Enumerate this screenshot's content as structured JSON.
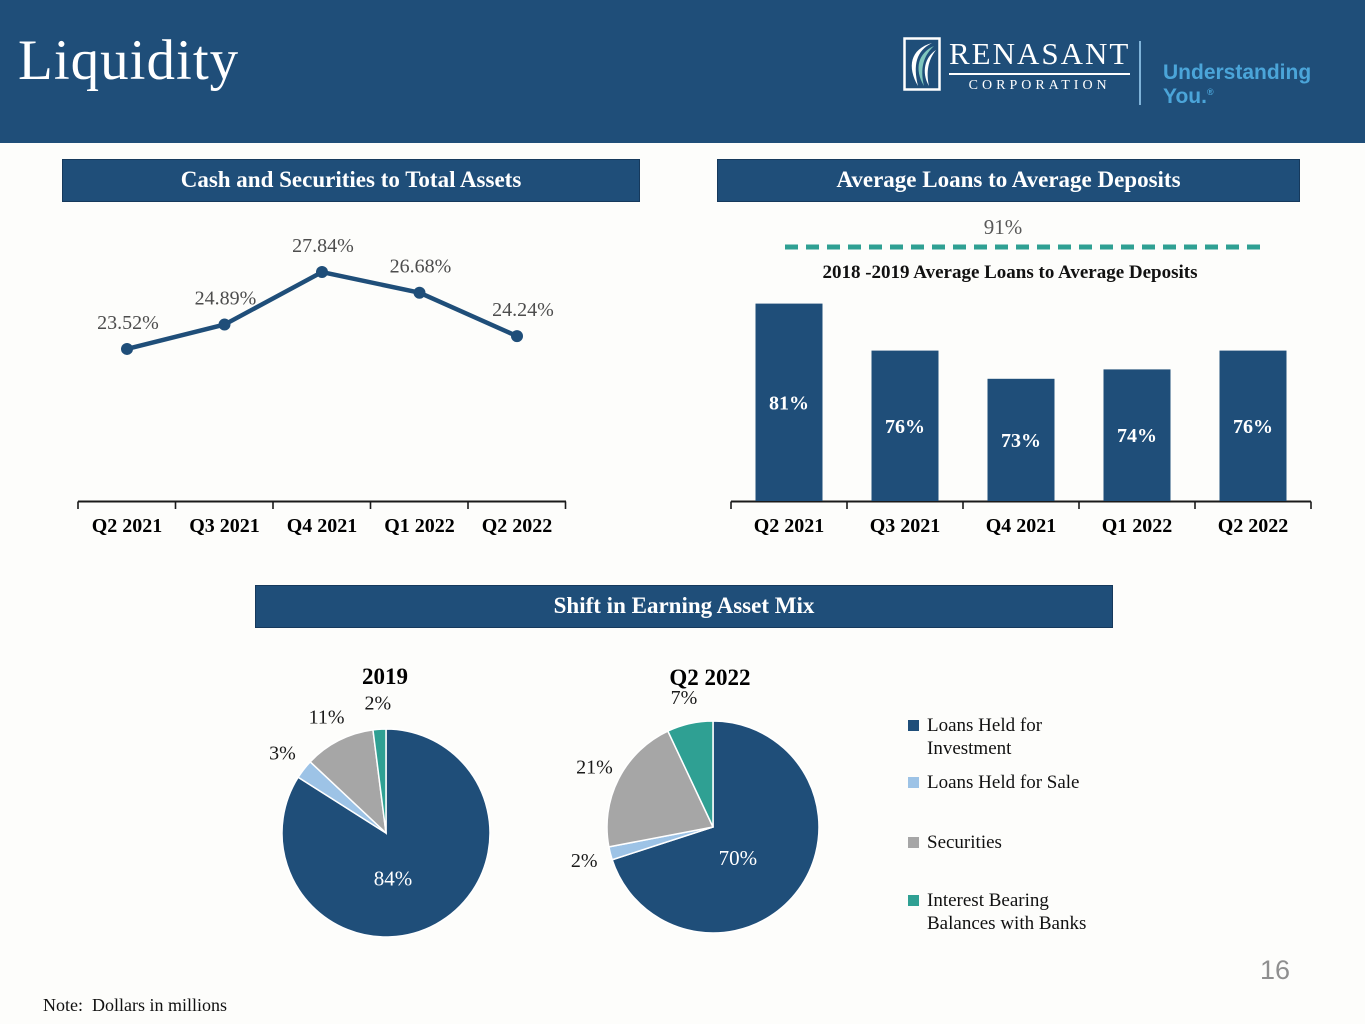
{
  "header": {
    "title": "Liquidity",
    "logo_name": "RENASANT",
    "logo_sub": "CORPORATION",
    "tagline": "Understanding You.",
    "tagline_mark": "®"
  },
  "pie_section": {
    "title": "Shift in Earning Asset Mix",
    "legend": [
      "Loans Held for Investment",
      "Loans Held for Sale",
      "Securities",
      "Interest Bearing Balances with Banks"
    ]
  },
  "chart_data": [
    {
      "id": "cash-securities-to-total-assets",
      "type": "line",
      "title": "Cash and Securities to Total Assets",
      "categories": [
        "Q2 2021",
        "Q3 2021",
        "Q4 2021",
        "Q1 2022",
        "Q2 2022"
      ],
      "values": [
        23.52,
        24.89,
        27.84,
        26.68,
        24.24
      ],
      "data_labels": [
        "23.52%",
        "24.89%",
        "27.84%",
        "26.68%",
        "24.24%"
      ],
      "ylim": [
        22,
        29
      ],
      "grid": false,
      "legend": "none"
    },
    {
      "id": "average-loans-to-average-deposits",
      "type": "bar",
      "title": "Average Loans to Average Deposits",
      "categories": [
        "Q2 2021",
        "Q3 2021",
        "Q4 2021",
        "Q1 2022",
        "Q2 2022"
      ],
      "values": [
        81,
        76,
        73,
        74,
        76
      ],
      "data_labels": [
        "81%",
        "76%",
        "73%",
        "74%",
        "76%"
      ],
      "ylim": [
        60,
        85
      ],
      "grid": false,
      "reference_line": {
        "value": 91,
        "label": "91%",
        "caption": "2018 -2019 Average Loans to Average Deposits"
      }
    },
    {
      "id": "earning-asset-mix-2019",
      "type": "pie",
      "title": "2019",
      "labels": [
        "Loans Held for Investment",
        "Loans Held for Sale",
        "Securities",
        "Interest Bearing Balances with Banks"
      ],
      "values": [
        84,
        3,
        11,
        2
      ],
      "data_labels": [
        "84%",
        "3%",
        "11%",
        "2%"
      ]
    },
    {
      "id": "earning-asset-mix-q2-2022",
      "type": "pie",
      "title": "Q2 2022",
      "labels": [
        "Loans Held for Investment",
        "Loans Held for Sale",
        "Securities",
        "Interest Bearing Balances with Banks"
      ],
      "values": [
        70,
        2,
        21,
        7
      ],
      "data_labels": [
        "70%",
        "2%",
        "21%",
        "7%"
      ]
    }
  ],
  "colors": {
    "navy": "#1F4E79",
    "light_blue": "#9DC3E6",
    "gray": "#A6A6A6",
    "teal": "#2FA093",
    "series": [
      "#1F4E79",
      "#9DC3E6",
      "#A6A6A6",
      "#2FA093"
    ],
    "tagline_blue": "#4BA5D9"
  },
  "footer": {
    "note": "Note:  Dollars in millions",
    "page": "16"
  }
}
